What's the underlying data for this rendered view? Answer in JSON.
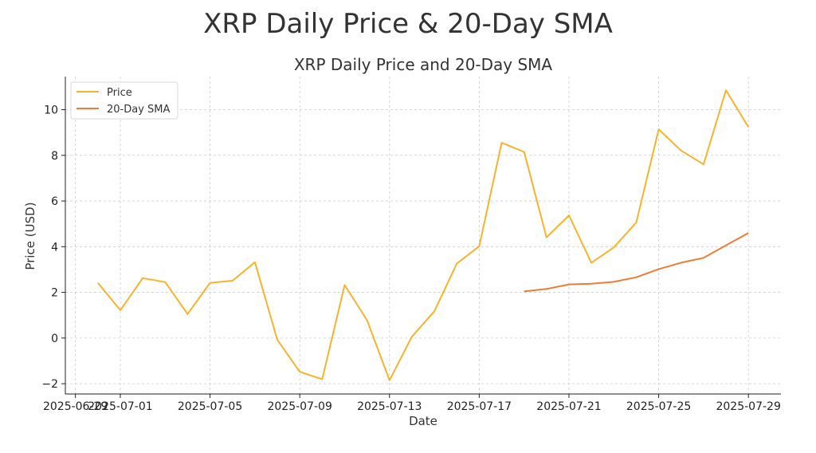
{
  "suptitle": "XRP Daily Price & 20-Day SMA",
  "chart_data": {
    "type": "line",
    "title": "XRP Daily Price and 20-Day SMA",
    "xlabel": "Date",
    "ylabel": "Price (USD)",
    "x": [
      "2025-06-30",
      "2025-07-01",
      "2025-07-02",
      "2025-07-03",
      "2025-07-04",
      "2025-07-05",
      "2025-07-06",
      "2025-07-07",
      "2025-07-08",
      "2025-07-09",
      "2025-07-10",
      "2025-07-11",
      "2025-07-12",
      "2025-07-13",
      "2025-07-14",
      "2025-07-15",
      "2025-07-16",
      "2025-07-17",
      "2025-07-18",
      "2025-07-19",
      "2025-07-20",
      "2025-07-21",
      "2025-07-22",
      "2025-07-23",
      "2025-07-24",
      "2025-07-25",
      "2025-07-26",
      "2025-07-27",
      "2025-07-28",
      "2025-07-29"
    ],
    "series": [
      {
        "name": "Price",
        "color": "#f9b22b",
        "values": [
          2.42,
          1.22,
          2.62,
          2.45,
          1.05,
          2.42,
          2.51,
          3.32,
          -0.08,
          -1.48,
          -1.8,
          2.32,
          0.78,
          -1.85,
          0.06,
          1.17,
          3.26,
          4.02,
          8.55,
          8.15,
          4.41,
          5.37,
          3.29,
          3.97,
          5.06,
          9.14,
          8.21,
          7.61,
          10.85,
          9.24
        ]
      },
      {
        "name": "20-Day SMA",
        "color": "#f07b35",
        "values": [
          null,
          null,
          null,
          null,
          null,
          null,
          null,
          null,
          null,
          null,
          null,
          null,
          null,
          null,
          null,
          null,
          null,
          null,
          null,
          2.04,
          2.15,
          2.35,
          2.38,
          2.46,
          2.66,
          3.02,
          3.3,
          3.51,
          4.06,
          4.6
        ]
      }
    ],
    "x_ticks": [
      "2025-06-29",
      "2025-07-01",
      "2025-07-05",
      "2025-07-09",
      "2025-07-13",
      "2025-07-17",
      "2025-07-21",
      "2025-07-25",
      "2025-07-29"
    ],
    "x_tick_labels": [
      "2025-06-29",
      "2025-07-01",
      "2025-07-05",
      "2025-07-09",
      "2025-07-13",
      "2025-07-17",
      "2025-07-21",
      "2025-07-25",
      "2025-07-29"
    ],
    "y_ticks": [
      -2,
      0,
      2,
      4,
      6,
      8,
      10
    ],
    "xlim": [
      "2025-06-29",
      "2025-07-30"
    ],
    "ylim": [
      -2.45,
      11.45
    ],
    "grid": true,
    "legend_position": "upper-left"
  }
}
